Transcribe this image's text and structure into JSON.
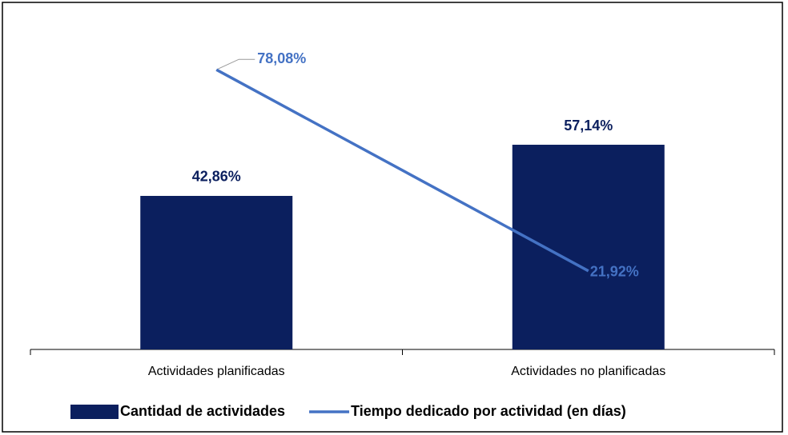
{
  "chart_data": {
    "type": "bar_line",
    "categories": [
      "Actividades planificadas",
      "Actividades no planificadas"
    ],
    "series": [
      {
        "name": "Cantidad de actividades",
        "type": "bar",
        "color": "#0b1f5e",
        "values": [
          42.86,
          57.14
        ],
        "value_labels": [
          "42,86%",
          "57,14%"
        ]
      },
      {
        "name": "Tiempo dedicado por actividad (en días)",
        "type": "line",
        "color": "#4472c4",
        "values": [
          78.08,
          21.92
        ],
        "value_labels": [
          "78,08%",
          "21,92%"
        ]
      }
    ],
    "legend": "bottom"
  }
}
